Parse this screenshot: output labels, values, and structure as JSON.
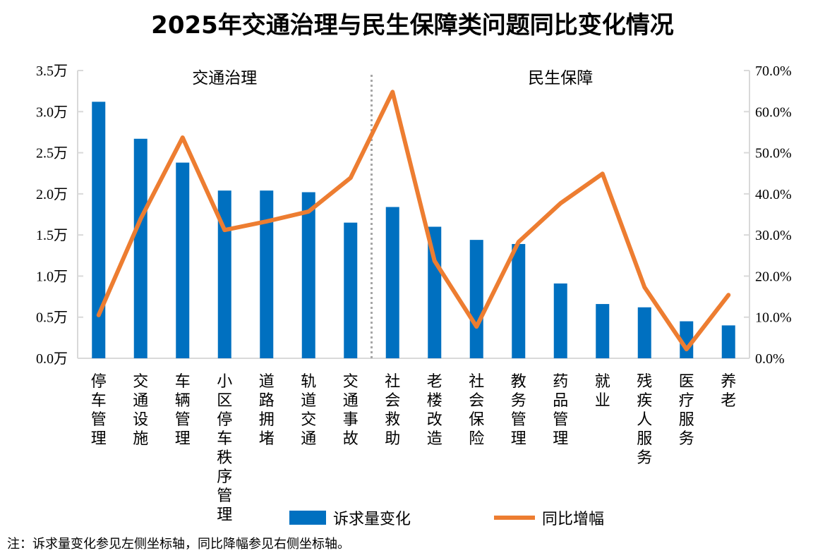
{
  "chart_data": {
    "type": "bar+line",
    "title": "2025年交通治理与民生保障类问题同比变化情况",
    "categories": [
      "停车管理",
      "交通设施",
      "车辆管理",
      "小区停车秩序管理",
      "道路拥堵",
      "轨道交通",
      "交通事故",
      "社会救助",
      "老楼改造",
      "社会保险",
      "教务管理",
      "药品管理",
      "就业",
      "残疾人服务",
      "医疗服务",
      "养老"
    ],
    "groups": [
      {
        "label": "交通治理",
        "from": 0,
        "to": 6
      },
      {
        "label": "民生保障",
        "from": 7,
        "to": 15
      }
    ],
    "series": [
      {
        "name": "诉求量变化",
        "type": "bar",
        "axis": "left",
        "color": "#0070C0",
        "values": [
          3.12,
          2.67,
          2.38,
          2.04,
          2.04,
          2.02,
          1.65,
          1.84,
          1.6,
          1.44,
          1.39,
          0.91,
          0.66,
          0.62,
          0.45,
          0.4
        ]
      },
      {
        "name": "同比增幅",
        "type": "line",
        "axis": "right",
        "color": "#ED7D31",
        "values": [
          10.5,
          33.9,
          53.7,
          31.2,
          33.3,
          35.7,
          43.9,
          64.8,
          23.7,
          7.7,
          28.3,
          37.7,
          44.9,
          17.3,
          2.2,
          15.4
        ]
      }
    ],
    "y_left": {
      "range": [
        0,
        3.5
      ],
      "ticks": [
        "0.0万",
        "0.5万",
        "1.0万",
        "1.5万",
        "2.0万",
        "2.5万",
        "3.0万",
        "3.5万"
      ]
    },
    "y_right": {
      "range": [
        0,
        70
      ],
      "ticks": [
        "0.0%",
        "10.0%",
        "20.0%",
        "30.0%",
        "40.0%",
        "50.0%",
        "60.0%",
        "70.0%"
      ]
    },
    "grid": false,
    "legend_placement": "bottom",
    "note": "注：诉求量变化参见左侧坐标轴，同比降幅参见右侧坐标轴。"
  }
}
